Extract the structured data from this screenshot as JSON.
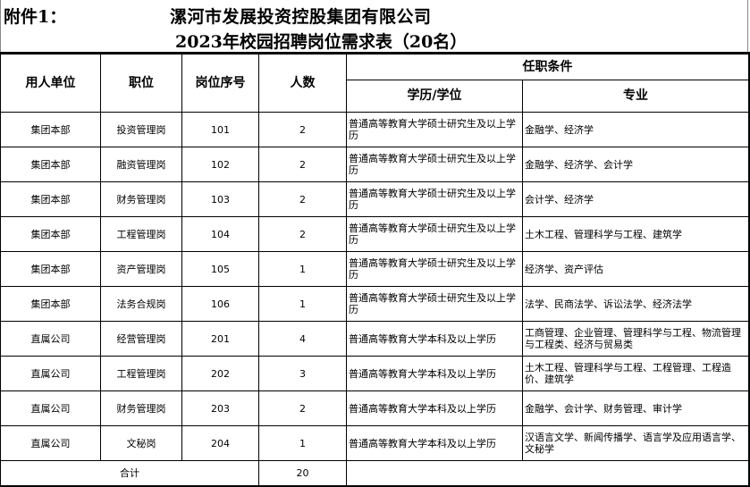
{
  "attachment_label": "附件1：",
  "title_line1": "漯河市发展投资控股集团有限公司",
  "title_line2": "2023年校园招聘岗位需求表（20名）",
  "headers": {
    "unit": "用人单位",
    "position": "职位",
    "code": "岗位序号",
    "count": "人数",
    "requirements": "任职条件",
    "education": "学历/学位",
    "major": "专业"
  },
  "rows": [
    {
      "unit": "集团本部",
      "position": "投资管理岗",
      "code": "101",
      "count": "2",
      "education": "普通高等教育大学硕士研究生及以上学历",
      "major": "金融学、经济学"
    },
    {
      "unit": "集团本部",
      "position": "融资管理岗",
      "code": "102",
      "count": "2",
      "education": "普通高等教育大学硕士研究生及以上学历",
      "major": "金融学、经济学、会计学"
    },
    {
      "unit": "集团本部",
      "position": "财务管理岗",
      "code": "103",
      "count": "2",
      "education": "普通高等教育大学硕士研究生及以上学历",
      "major": "会计学、经济学"
    },
    {
      "unit": "集团本部",
      "position": "工程管理岗",
      "code": "104",
      "count": "2",
      "education": "普通高等教育大学硕士研究生及以上学历",
      "major": "土木工程、管理科学与工程、建筑学"
    },
    {
      "unit": "集团本部",
      "position": "资产管理岗",
      "code": "105",
      "count": "1",
      "education": "普通高等教育大学硕士研究生及以上学历",
      "major": "经济学、资产评估"
    },
    {
      "unit": "集团本部",
      "position": "法务合规岗",
      "code": "106",
      "count": "1",
      "education": "普通高等教育大学硕士研究生及以上学历",
      "major": "法学、民商法学、诉讼法学、经济法学"
    },
    {
      "unit": "直属公司",
      "position": "经营管理岗",
      "code": "201",
      "count": "4",
      "education": "普通高等教育大学本科及以上学历",
      "major": "工商管理、企业管理、管理科学与工程、物流管理与工程类、经济与贸易类"
    },
    {
      "unit": "直属公司",
      "position": "工程管理岗",
      "code": "202",
      "count": "3",
      "education": "普通高等教育大学本科及以上学历",
      "major": "土木工程、管理科学与工程、工程管理、工程造价、建筑学"
    },
    {
      "unit": "直属公司",
      "position": "财务管理岗",
      "code": "203",
      "count": "2",
      "education": "普通高等教育大学本科及以上学历",
      "major": "金融学、会计学、财务管理、审计学"
    },
    {
      "unit": "直属公司",
      "position": "文秘岗",
      "code": "204",
      "count": "1",
      "education": "普通高等教育大学本科及以上学历",
      "major": "汉语言文学、新闻传播学、语言学及应用语言学、文秘学"
    }
  ],
  "total": {
    "label": "合计",
    "count": "20"
  }
}
